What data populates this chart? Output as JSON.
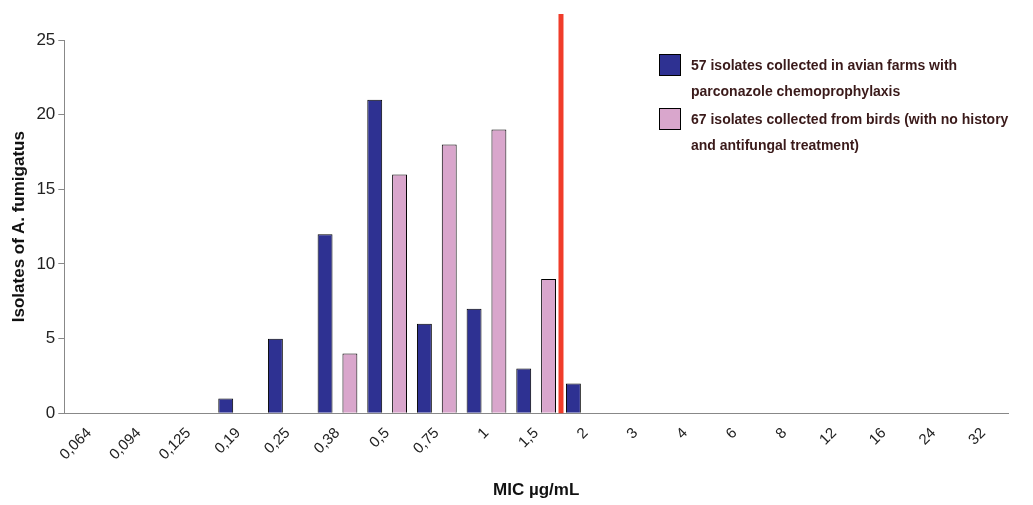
{
  "chart_data": {
    "type": "bar",
    "xlabel": "MIC µg/mL",
    "ylabel": "Isolates of A. fumigatus",
    "categories": [
      "0,064",
      "0,094",
      "0,125",
      "0,19",
      "0,25",
      "0,38",
      "0,5",
      "0,75",
      "1",
      "1,5",
      "2",
      "3",
      "4",
      "6",
      "8",
      "12",
      "16",
      "24",
      "32"
    ],
    "series": [
      {
        "name": "57 isolates collected in avian farms with parconazole chemoprophylaxis",
        "color": "#2e3192",
        "values": [
          0,
          0,
          0,
          1,
          5,
          12,
          21,
          6,
          7,
          3,
          2,
          0,
          0,
          0,
          0,
          0,
          0,
          0,
          0
        ]
      },
      {
        "name": "67 isolates collected from birds (with no history and antifungal treatment)",
        "color": "#d9a6cc",
        "values": [
          0,
          0,
          0,
          0,
          0,
          4,
          16,
          18,
          19,
          9,
          0,
          0,
          0,
          0,
          0,
          0,
          0,
          0,
          0
        ]
      }
    ],
    "ylim": [
      0,
      25
    ],
    "yticks": [
      0,
      5,
      10,
      15,
      20,
      25
    ],
    "grid": false,
    "legend": "top right",
    "ref_lines": [
      {
        "axis": "x",
        "value": "1,5",
        "color": "#f03c2a"
      }
    ]
  }
}
